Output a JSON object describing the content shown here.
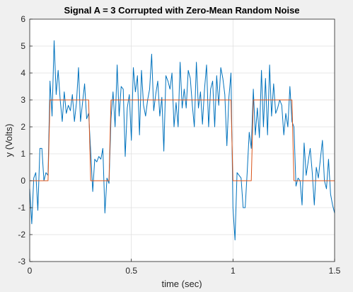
{
  "chart_data": {
    "type": "line",
    "title": "Signal A = 3 Corrupted with Zero-Mean Random Noise",
    "xlabel": "time (sec)",
    "ylabel": "y (Volts)",
    "xlim": [
      0,
      1.5
    ],
    "ylim": [
      -3,
      6
    ],
    "xticks": [
      0,
      0.5,
      1,
      1.5
    ],
    "xtick_labels": [
      "0",
      "0.5",
      "1",
      "1.5"
    ],
    "yticks": [
      -3,
      -2,
      -1,
      0,
      1,
      2,
      3,
      4,
      5,
      6
    ],
    "ytick_labels": [
      "-3",
      "-2",
      "-1",
      "0",
      "1",
      "2",
      "3",
      "4",
      "5",
      "6"
    ],
    "grid": true,
    "series": [
      {
        "color": "#0072bd",
        "x": [
          0,
          0.01,
          0.02,
          0.03,
          0.04,
          0.05,
          0.06,
          0.07,
          0.08,
          0.09,
          0.1,
          0.11,
          0.12,
          0.13,
          0.14,
          0.15,
          0.16,
          0.17,
          0.18,
          0.19,
          0.2,
          0.21,
          0.22,
          0.23,
          0.24,
          0.25,
          0.26,
          0.27,
          0.28,
          0.29,
          0.3,
          0.31,
          0.32,
          0.33,
          0.34,
          0.35,
          0.36,
          0.37,
          0.38,
          0.39,
          0.4,
          0.41,
          0.42,
          0.43,
          0.44,
          0.45,
          0.46,
          0.47,
          0.48,
          0.49,
          0.5,
          0.51,
          0.52,
          0.53,
          0.54,
          0.55,
          0.56,
          0.57,
          0.58,
          0.59,
          0.6,
          0.61,
          0.62,
          0.63,
          0.64,
          0.65,
          0.66,
          0.67,
          0.68,
          0.69,
          0.7,
          0.71,
          0.72,
          0.73,
          0.74,
          0.75,
          0.76,
          0.77,
          0.78,
          0.79,
          0.8,
          0.81,
          0.82,
          0.83,
          0.84,
          0.85,
          0.86,
          0.87,
          0.88,
          0.89,
          0.9,
          0.91,
          0.92,
          0.93,
          0.94,
          0.95,
          0.96,
          0.97,
          0.98,
          0.99,
          1.0,
          1.01,
          1.02,
          1.03,
          1.04,
          1.05,
          1.06,
          1.07,
          1.08,
          1.09,
          1.1,
          1.11,
          1.12,
          1.13,
          1.14,
          1.15,
          1.16,
          1.17,
          1.18,
          1.19,
          1.2,
          1.21,
          1.22,
          1.23,
          1.24,
          1.25,
          1.26,
          1.27,
          1.28,
          1.29,
          1.3,
          1.31,
          1.32,
          1.33,
          1.34,
          1.35,
          1.36,
          1.37,
          1.38,
          1.39,
          1.4,
          1.41,
          1.42,
          1.43,
          1.44,
          1.45,
          1.46,
          1.47,
          1.48,
          1.49,
          1.5
        ],
        "y": [
          -0.3,
          -1.6,
          0.1,
          0.3,
          -1.1,
          1.2,
          1.2,
          0.0,
          0.3,
          0.2,
          3.7,
          2.4,
          5.2,
          3.2,
          4.1,
          3.0,
          2.2,
          3.3,
          2.5,
          2.8,
          2.6,
          3.2,
          2.2,
          2.9,
          4.2,
          2.2,
          2.9,
          3.6,
          2.3,
          2.5,
          1.1,
          -0.4,
          0.8,
          0.7,
          0.9,
          0.8,
          1.2,
          -1.2,
          0.1,
          -0.1,
          2.3,
          3.3,
          2.0,
          4.3,
          2.4,
          3.5,
          3.4,
          0.9,
          2.7,
          3.2,
          1.5,
          4.2,
          3.3,
          3.9,
          1.7,
          4.1,
          2.8,
          2.4,
          3.0,
          3.4,
          4.7,
          2.6,
          3.2,
          3.7,
          2.4,
          3.1,
          1.1,
          3.9,
          3.7,
          3.4,
          4.0,
          2.0,
          2.9,
          2.0,
          4.4,
          2.7,
          3.4,
          2.7,
          4.1,
          3.8,
          2.8,
          2.0,
          4.4,
          2.7,
          3.3,
          2.1,
          3.4,
          4.3,
          2.0,
          3.4,
          3.7,
          2.0,
          3.9,
          2.8,
          4.2,
          3.8,
          3.2,
          1.3,
          3.1,
          4.0,
          -1.0,
          -2.2,
          0.3,
          0.2,
          0.1,
          -1.0,
          -1.0,
          0.3,
          1.8,
          1.2,
          3.4,
          1.7,
          2.7,
          1.6,
          4.1,
          2.0,
          3.8,
          1.7,
          4.3,
          2.4,
          3.6,
          2.5,
          2.7,
          3.0,
          2.8,
          1.7,
          2.5,
          2.0,
          3.5,
          2.2,
          2.0,
          -0.2,
          0.1,
          0.0,
          -0.9,
          1.4,
          0.2,
          0.7,
          1.2,
          0.3,
          -0.9,
          0.5,
          0.1,
          0.8,
          1.5,
          0.0,
          -0.3,
          0.8,
          -0.5,
          -0.9,
          -1.2
        ]
      },
      {
        "color": "#d95319",
        "x": [
          0,
          0.09,
          0.1,
          0.29,
          0.3,
          0.39,
          0.4,
          0.99,
          1.0,
          1.09,
          1.1,
          1.29,
          1.3,
          1.5
        ],
        "y": [
          0,
          0,
          3,
          3,
          0,
          0,
          3,
          3,
          0,
          0,
          3,
          3,
          0,
          0
        ]
      }
    ]
  }
}
